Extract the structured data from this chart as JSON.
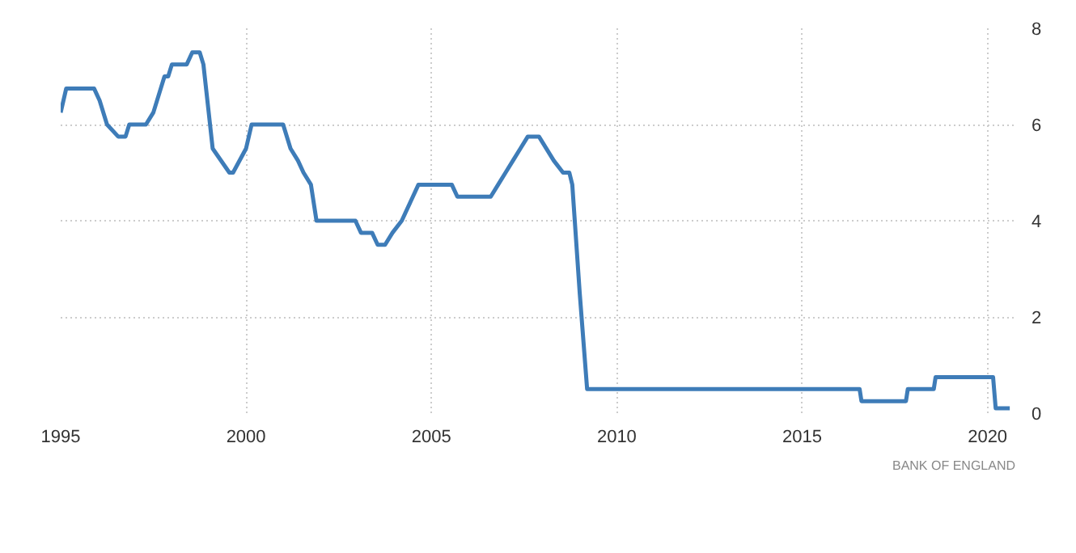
{
  "chart_data": {
    "type": "line",
    "xlim": [
      1995,
      2020.75
    ],
    "xticks": [
      1995,
      2000,
      2005,
      2010,
      2015,
      2020
    ],
    "ylim": [
      0,
      8
    ],
    "yticks": [
      0,
      2,
      4,
      6,
      8
    ],
    "grid": true,
    "marker": "none",
    "line_style": "solid",
    "annotations": [
      "BANK OF ENGLAND"
    ],
    "series": [
      {
        "color": "#3e7cb8",
        "x": [
          1995.0,
          1995.15,
          1995.9,
          1996.05,
          1996.25,
          1996.55,
          1996.75,
          1996.85,
          1997.3,
          1997.5,
          1997.8,
          1997.9,
          1998.0,
          1998.4,
          1998.55,
          1998.75,
          1998.85,
          1999.1,
          1999.55,
          1999.65,
          2000.0,
          2000.15,
          2001.0,
          2001.2,
          2001.4,
          2001.55,
          2001.75,
          2001.9,
          2002.95,
          2003.1,
          2003.4,
          2003.55,
          2003.75,
          2003.95,
          2004.2,
          2004.5,
          2004.65,
          2005.55,
          2005.7,
          2006.6,
          2006.8,
          2007.0,
          2007.2,
          2007.4,
          2007.6,
          2007.9,
          2008.3,
          2008.55,
          2008.72,
          2008.8,
          2009.0,
          2009.2,
          2016.55,
          2016.6,
          2017.8,
          2017.85,
          2018.55,
          2018.6,
          2020.15,
          2020.22,
          2020.6
        ],
        "values": [
          6.25,
          6.75,
          6.75,
          6.5,
          6.0,
          5.75,
          5.75,
          6.0,
          6.0,
          6.25,
          7.0,
          7.0,
          7.25,
          7.25,
          7.5,
          7.5,
          7.25,
          5.5,
          5.0,
          5.0,
          5.5,
          6.0,
          6.0,
          5.5,
          5.25,
          5.0,
          4.75,
          4.0,
          4.0,
          3.75,
          3.75,
          3.5,
          3.5,
          3.75,
          4.0,
          4.5,
          4.75,
          4.75,
          4.5,
          4.5,
          4.75,
          5.0,
          5.25,
          5.5,
          5.75,
          5.75,
          5.25,
          5.0,
          5.0,
          4.75,
          2.5,
          0.5,
          0.5,
          0.25,
          0.25,
          0.5,
          0.5,
          0.75,
          0.75,
          0.1,
          0.1
        ]
      }
    ]
  }
}
